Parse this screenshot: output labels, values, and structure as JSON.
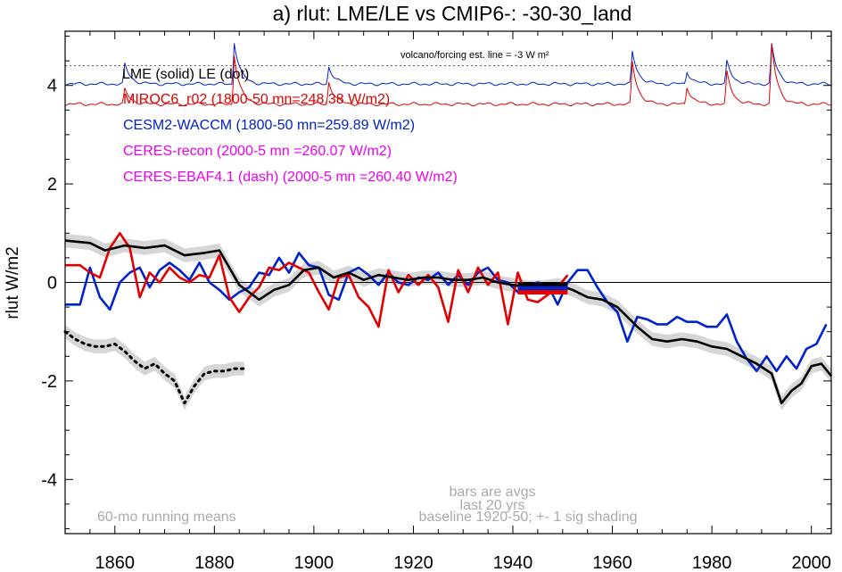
{
  "chart_data": {
    "type": "line",
    "title": "a) rlut: LME/LE vs CMIP6-: -30-30_land",
    "xlabel": "",
    "ylabel": "rlut W/m2",
    "xlim": [
      1850,
      2004
    ],
    "ylim": [
      -5.1,
      5.1
    ],
    "x_ticks": [
      1860,
      1880,
      1900,
      1920,
      1940,
      1960,
      1980,
      2000
    ],
    "y_ticks": [
      -4,
      -2,
      0,
      2,
      4
    ],
    "legend_lines": [
      {
        "text": "LME (solid)   LE (dot)",
        "color": "#000000"
      },
      {
        "text": "MIROC6_r02 (1800-50 mn=248.38 W/m2)",
        "color": "#e00000"
      },
      {
        "text": "CESM2-WACCM (1800-50 mn=259.89 W/m2)",
        "color": "#0022cc"
      },
      {
        "text": "CERES-recon (2000-5 mn =260.07 W/m2)",
        "color": "#ee00ee"
      },
      {
        "text": "CERES-EBAF4.1 (dash) (2000-5 mn =260.40 W/m2)",
        "color": "#ee00ee"
      }
    ],
    "volcano_note": "volcano/forcing est.      line = -3 W m²",
    "volcano_ref_level": 4.4,
    "annotations": {
      "running_means": "60-mo running means",
      "bars_line1": "bars are avgs",
      "bars_line2": "last 20 yrs",
      "baseline": "baseline 1920-50; +- 1 sig shading"
    },
    "series": [
      {
        "name": "LME (solid)",
        "color": "#000000",
        "style": "solid",
        "x": [
          1850,
          1855,
          1858,
          1862,
          1866,
          1870,
          1874,
          1878,
          1881,
          1883,
          1885,
          1887,
          1889,
          1892,
          1895,
          1898,
          1901,
          1904,
          1907,
          1910,
          1913,
          1916,
          1919,
          1922,
          1925,
          1928,
          1931,
          1934,
          1937,
          1940,
          1943,
          1946,
          1949,
          1952,
          1955,
          1958,
          1961,
          1963,
          1965,
          1968,
          1971,
          1974,
          1977,
          1980,
          1983,
          1986,
          1989,
          1992,
          1994,
          1996,
          1998,
          2000,
          2002,
          2004
        ],
        "y": [
          0.85,
          0.8,
          0.65,
          0.75,
          0.7,
          0.75,
          0.55,
          0.6,
          0.65,
          0.3,
          -0.05,
          -0.2,
          -0.35,
          -0.15,
          -0.05,
          0.25,
          0.3,
          0.1,
          0.2,
          0.05,
          0.15,
          0.1,
          0.05,
          0.1,
          0.1,
          0.05,
          0.05,
          0.1,
          0.0,
          -0.05,
          -0.1,
          -0.1,
          -0.05,
          -0.15,
          -0.3,
          -0.35,
          -0.5,
          -0.7,
          -0.9,
          -1.15,
          -1.2,
          -1.15,
          -1.2,
          -1.3,
          -1.35,
          -1.5,
          -1.65,
          -1.85,
          -2.45,
          -2.2,
          -2.05,
          -1.7,
          -1.65,
          -1.9
        ]
      },
      {
        "name": "LE (dot)",
        "color": "#000000",
        "style": "dot",
        "x": [
          1850,
          1852,
          1854,
          1856,
          1858,
          1860,
          1862,
          1864,
          1866,
          1868,
          1870,
          1872,
          1874,
          1876,
          1878,
          1880,
          1882,
          1884,
          1886
        ],
        "y": [
          -1.0,
          -1.15,
          -1.25,
          -1.3,
          -1.3,
          -1.25,
          -1.4,
          -1.6,
          -1.75,
          -1.65,
          -1.85,
          -2.0,
          -2.45,
          -2.1,
          -1.85,
          -1.8,
          -1.8,
          -1.75,
          -1.75
        ]
      },
      {
        "name": "MIROC6_r02",
        "color": "#e00000",
        "style": "solid",
        "x": [
          1850,
          1853,
          1855,
          1857,
          1859,
          1861,
          1863,
          1865,
          1867,
          1869,
          1871,
          1873,
          1875,
          1877,
          1879,
          1881,
          1883,
          1885,
          1887,
          1889,
          1891,
          1893,
          1895,
          1897,
          1899,
          1901,
          1903,
          1905,
          1907,
          1909,
          1911,
          1913,
          1915,
          1917,
          1919,
          1921,
          1923,
          1925,
          1927,
          1929,
          1931,
          1933,
          1935,
          1937,
          1939,
          1941,
          1943,
          1945,
          1947,
          1949,
          1951
        ],
        "y": [
          0.35,
          0.35,
          0.2,
          0.1,
          0.7,
          1.0,
          0.7,
          -0.3,
          0.2,
          0.0,
          0.3,
          0.1,
          0.0,
          0.15,
          0.1,
          0.55,
          -0.3,
          -0.6,
          -0.3,
          -0.1,
          0.3,
          0.25,
          0.4,
          0.3,
          0.2,
          -0.2,
          -0.55,
          0.1,
          0.15,
          -0.3,
          -0.5,
          -0.9,
          0.25,
          -0.2,
          0.15,
          -0.05,
          0.15,
          -0.1,
          -0.8,
          0.25,
          -0.2,
          0.3,
          -0.05,
          0.2,
          -0.85,
          0.2,
          -0.35,
          -0.4,
          -0.25,
          -0.1,
          0.15
        ]
      },
      {
        "name": "CESM2-WACCM",
        "color": "#0022cc",
        "style": "solid",
        "x": [
          1850,
          1853,
          1855,
          1857,
          1859,
          1861,
          1863,
          1865,
          1867,
          1869,
          1871,
          1873,
          1875,
          1877,
          1879,
          1881,
          1883,
          1885,
          1887,
          1889,
          1891,
          1893,
          1895,
          1897,
          1899,
          1901,
          1903,
          1905,
          1907,
          1909,
          1911,
          1913,
          1915,
          1917,
          1919,
          1921,
          1923,
          1925,
          1927,
          1929,
          1931,
          1933,
          1935,
          1937,
          1939,
          1941,
          1943,
          1945,
          1947,
          1949,
          1951,
          1953,
          1955,
          1957,
          1959,
          1961,
          1963,
          1965,
          1967,
          1969,
          1971,
          1973,
          1975,
          1977,
          1979,
          1981,
          1983,
          1985,
          1987,
          1989,
          1991,
          1993,
          1995,
          1997,
          1999,
          2001,
          2003
        ],
        "y": [
          -0.45,
          -0.45,
          0.3,
          -0.3,
          -0.55,
          0.0,
          0.2,
          0.3,
          -0.1,
          0.25,
          0.4,
          0.25,
          0.05,
          0.4,
          0.0,
          -0.15,
          -0.35,
          -0.2,
          -0.1,
          0.2,
          0.15,
          0.5,
          0.2,
          0.6,
          0.35,
          0.3,
          -0.25,
          -0.35,
          0.2,
          0.3,
          0.15,
          -0.05,
          0.2,
          0.0,
          -0.05,
          0.1,
          0.05,
          0.2,
          -0.05,
          0.15,
          -0.05,
          0.2,
          0.3,
          0.05,
          0.0,
          -0.2,
          -0.05,
          0.0,
          -0.05,
          -0.45,
          0.0,
          0.25,
          0.25,
          -0.1,
          -0.4,
          -0.6,
          -1.2,
          -0.7,
          -0.75,
          -0.85,
          -0.85,
          -0.7,
          -0.8,
          -0.8,
          -0.9,
          -0.9,
          -0.65,
          -1.2,
          -1.55,
          -1.8,
          -1.5,
          -1.8,
          -1.5,
          -1.75,
          -1.35,
          -1.25,
          -0.85
        ]
      }
    ],
    "bars_last20yrs": [
      {
        "color": "#000000",
        "x": [
          1941,
          1951
        ],
        "y": -0.05
      },
      {
        "color": "#0022cc",
        "x": [
          1941,
          1951
        ],
        "y": -0.12
      },
      {
        "color": "#e00000",
        "x": [
          1941,
          1951
        ],
        "y": -0.2
      }
    ],
    "volcano_curves": [
      {
        "color": "#0022cc",
        "base": 4.03,
        "spikes": [
          [
            1862,
            0.4
          ],
          [
            1884,
            0.85
          ],
          [
            1903,
            0.35
          ],
          [
            1964,
            0.65
          ],
          [
            1975,
            0.25
          ],
          [
            1983,
            0.45
          ],
          [
            1992,
            0.8
          ]
        ]
      },
      {
        "color": "#e00000",
        "base": 3.62,
        "spikes": [
          [
            1862,
            0.3
          ],
          [
            1884,
            1.0
          ],
          [
            1903,
            0.45
          ],
          [
            1964,
            0.85
          ],
          [
            1975,
            0.35
          ],
          [
            1983,
            0.65
          ],
          [
            1992,
            1.2
          ]
        ]
      }
    ]
  }
}
